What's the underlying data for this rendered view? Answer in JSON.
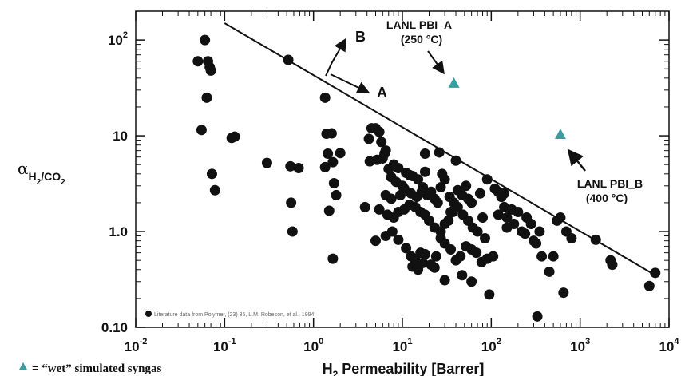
{
  "chart_data": {
    "type": "scatter",
    "xlabel": "H",
    "xlabel_sub": "2",
    "xlabel_rest": " Permeability [Barrer]",
    "ylabel": "α",
    "ylabel_sub": "H",
    "ylabel_sub_num": "2",
    "ylabel_sub_rest": "/CO",
    "ylabel_sub_num2": "2",
    "x_scale": "log",
    "y_scale": "log",
    "xlim": [
      0.01,
      10000
    ],
    "ylim": [
      0.1,
      200
    ],
    "x_ticks": [
      {
        "value": 0.01,
        "base": "10",
        "exp": "-2"
      },
      {
        "value": 0.1,
        "base": "10",
        "exp": "-1"
      },
      {
        "value": 1,
        "base": "10",
        "exp": "0"
      },
      {
        "value": 10,
        "base": "10",
        "exp": "1"
      },
      {
        "value": 100,
        "base": "10",
        "exp": "2"
      },
      {
        "value": 1000,
        "base": "10",
        "exp": "3"
      },
      {
        "value": 10000,
        "base": "10",
        "exp": "4"
      }
    ],
    "y_ticks": [
      {
        "value": 0.1,
        "label": "0.10"
      },
      {
        "value": 1,
        "label": "1.0"
      },
      {
        "value": 10,
        "label": "10"
      },
      {
        "value": 100,
        "base": "10",
        "exp": "2"
      }
    ],
    "grid": false,
    "upper_bound_line": {
      "x": [
        0.1,
        7000
      ],
      "y": [
        150,
        0.35
      ]
    },
    "arrow_b": {
      "label": "B"
    },
    "arrow_a": {
      "label": "A"
    },
    "series": [
      {
        "name": "Literature data from Polymer, (23) 35, L.M. Robeson, et al., 1994.",
        "color": "#111111",
        "marker": "circle",
        "points": [
          [
            0.06,
            100
          ],
          [
            0.05,
            60
          ],
          [
            0.065,
            60
          ],
          [
            0.068,
            52
          ],
          [
            0.07,
            48
          ],
          [
            0.063,
            25
          ],
          [
            0.055,
            11.5
          ],
          [
            0.072,
            4
          ],
          [
            0.078,
            2.7
          ],
          [
            0.12,
            9.5
          ],
          [
            0.13,
            9.8
          ],
          [
            0.52,
            62
          ],
          [
            0.3,
            5.2
          ],
          [
            0.55,
            4.8
          ],
          [
            0.68,
            4.6
          ],
          [
            0.56,
            2
          ],
          [
            0.58,
            1
          ],
          [
            1.35,
            25
          ],
          [
            1.4,
            10.5
          ],
          [
            1.6,
            10.6
          ],
          [
            1.45,
            6.5
          ],
          [
            1.65,
            5.3
          ],
          [
            1.35,
            4.7
          ],
          [
            1.7,
            3.2
          ],
          [
            1.8,
            2.4
          ],
          [
            1.5,
            1.65
          ],
          [
            1.65,
            0.52
          ],
          [
            2.0,
            6.6
          ],
          [
            4.5,
            12
          ],
          [
            5.0,
            12
          ],
          [
            5.5,
            11
          ],
          [
            4.2,
            9.3
          ],
          [
            5.8,
            8.6
          ],
          [
            6.5,
            7
          ],
          [
            6.3,
            6.5
          ],
          [
            4.3,
            5.4
          ],
          [
            5.2,
            5.6
          ],
          [
            6.0,
            5.8
          ],
          [
            7,
            4.5
          ],
          [
            8,
            5
          ],
          [
            9,
            4.6
          ],
          [
            7.5,
            3.7
          ],
          [
            8.5,
            3.3
          ],
          [
            10,
            3
          ],
          [
            11,
            4.1
          ],
          [
            12,
            3.9
          ],
          [
            13,
            3.8
          ],
          [
            15,
            3.5
          ],
          [
            17,
            2.9
          ],
          [
            18,
            4.2
          ],
          [
            6.5,
            2.4
          ],
          [
            7.5,
            2.2
          ],
          [
            9.5,
            2.4
          ],
          [
            10.5,
            2.8
          ],
          [
            12.5,
            2.5
          ],
          [
            14.5,
            2.3
          ],
          [
            16.5,
            2.6
          ],
          [
            19,
            2.4
          ],
          [
            21,
            2.6
          ],
          [
            23,
            2.2
          ],
          [
            25,
            2.0
          ],
          [
            27,
            2.9
          ],
          [
            30,
            3.5
          ],
          [
            34,
            2.3
          ],
          [
            38,
            2.0
          ],
          [
            42,
            2.7
          ],
          [
            47,
            2.4
          ],
          [
            55,
            2.2
          ],
          [
            60,
            2.0
          ],
          [
            3.8,
            1.8
          ],
          [
            5.5,
            1.7
          ],
          [
            6.8,
            1.5
          ],
          [
            8.0,
            1.4
          ],
          [
            9.0,
            1.6
          ],
          [
            10.5,
            1.7
          ],
          [
            12,
            1.9
          ],
          [
            14,
            1.8
          ],
          [
            16,
            1.6
          ],
          [
            18,
            1.5
          ],
          [
            20,
            1.3
          ],
          [
            23,
            1.1
          ],
          [
            27,
            1.0
          ],
          [
            30,
            1.2
          ],
          [
            33,
            1.3
          ],
          [
            37,
            1.6
          ],
          [
            42,
            1.8
          ],
          [
            48,
            1.5
          ],
          [
            55,
            1.3
          ],
          [
            62,
            1.1
          ],
          [
            70,
            1.0
          ],
          [
            80,
            1.4
          ],
          [
            5.0,
            0.8
          ],
          [
            6.5,
            0.9
          ],
          [
            7.7,
            1.0
          ],
          [
            9.0,
            0.82
          ],
          [
            11,
            0.67
          ],
          [
            12.5,
            0.55
          ],
          [
            14,
            0.5
          ],
          [
            16,
            0.6
          ],
          [
            18,
            0.58
          ],
          [
            21,
            0.45
          ],
          [
            24,
            0.55
          ],
          [
            27,
            0.85
          ],
          [
            30,
            0.75
          ],
          [
            35,
            0.65
          ],
          [
            40,
            0.5
          ],
          [
            45,
            0.55
          ],
          [
            52,
            0.7
          ],
          [
            60,
            0.65
          ],
          [
            68,
            0.6
          ],
          [
            78,
            0.48
          ],
          [
            90,
            0.52
          ],
          [
            105,
            0.55
          ],
          [
            13,
            0.43
          ],
          [
            15,
            0.4
          ],
          [
            17,
            0.47
          ],
          [
            23,
            0.42
          ],
          [
            30,
            0.31
          ],
          [
            47,
            0.35
          ],
          [
            60,
            0.3
          ],
          [
            95,
            0.22
          ],
          [
            85,
            0.85
          ],
          [
            35,
            1.6
          ],
          [
            18,
            6.5
          ],
          [
            26,
            6.7
          ],
          [
            40,
            5.5
          ],
          [
            28,
            4.0
          ],
          [
            52,
            3.0
          ],
          [
            75,
            2.5
          ],
          [
            90,
            3.5
          ],
          [
            110,
            2.8
          ],
          [
            130,
            2.3
          ],
          [
            140,
            1.8
          ],
          [
            170,
            1.7
          ],
          [
            120,
            1.5
          ],
          [
            150,
            1.4
          ],
          [
            200,
            1.6
          ],
          [
            250,
            1.4
          ],
          [
            280,
            1.2
          ],
          [
            320,
            0.75
          ],
          [
            150,
            1.1
          ],
          [
            180,
            1.2
          ],
          [
            220,
            1.0
          ],
          [
            240,
            0.95
          ],
          [
            300,
            0.8
          ],
          [
            120,
            2.6
          ],
          [
            140,
            2.5
          ],
          [
            370,
            0.55
          ],
          [
            500,
            0.55
          ],
          [
            350,
            1.0
          ],
          [
            330,
            0.13
          ],
          [
            450,
            0.38
          ],
          [
            650,
            0.23
          ],
          [
            550,
            1.3
          ],
          [
            600,
            1.4
          ],
          [
            700,
            1.0
          ],
          [
            800,
            0.85
          ],
          [
            1500,
            0.82
          ],
          [
            2200,
            0.5
          ],
          [
            2300,
            0.45
          ],
          [
            6000,
            0.27
          ],
          [
            7000,
            0.37
          ]
        ]
      },
      {
        "name": "= “wet” simulated syngas",
        "color": "#3a9da0",
        "marker": "triangle",
        "points": [
          [
            38,
            36
          ],
          [
            600,
            10.5
          ]
        ]
      }
    ],
    "annotations": [
      {
        "lines": [
          "LANL PBI_A",
          "(250 °C)"
        ]
      },
      {
        "lines": [
          "LANL PBI_B",
          "(400 °C)"
        ]
      }
    ],
    "legend_position": "bottom-left"
  }
}
